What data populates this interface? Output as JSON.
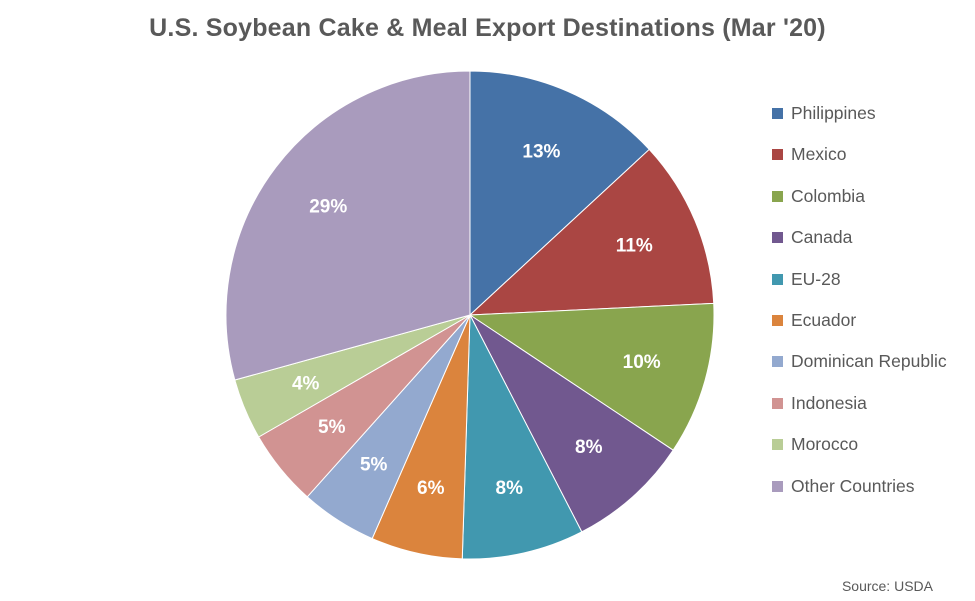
{
  "chart_data": {
    "type": "pie",
    "title": "U.S. Soybean Cake & Meal Export Destinations (Mar '20)",
    "categories": [
      "Philippines",
      "Mexico",
      "Colombia",
      "Canada",
      "EU-28",
      "Ecuador",
      "Dominican Republic",
      "Indonesia",
      "Morocco",
      "Other Countries"
    ],
    "values": [
      13,
      11,
      10,
      8,
      8,
      6,
      5,
      5,
      4,
      29
    ],
    "labels": [
      "13%",
      "11%",
      "10%",
      "8%",
      "8%",
      "6%",
      "5%",
      "5%",
      "4%",
      "29%"
    ],
    "colors": [
      "#4572A7",
      "#AA4643",
      "#89A54E",
      "#71588F",
      "#4198AF",
      "#DB843D",
      "#93A9CF",
      "#D19392",
      "#B9CD96",
      "#A99BBD"
    ],
    "legend_position": "right",
    "source": "Source: USDA"
  }
}
